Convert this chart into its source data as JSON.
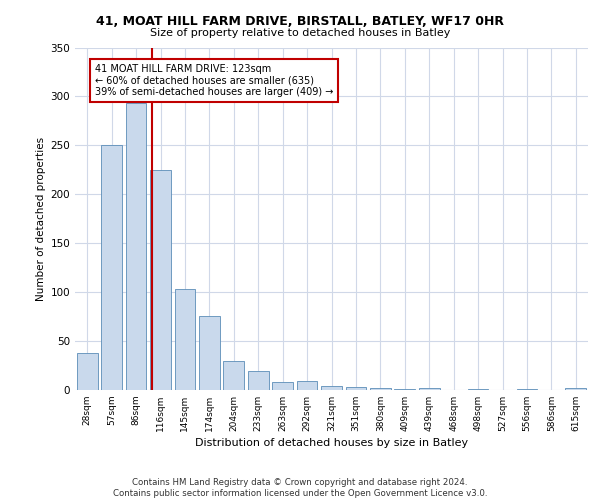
{
  "title_line1": "41, MOAT HILL FARM DRIVE, BIRSTALL, BATLEY, WF17 0HR",
  "title_line2": "Size of property relative to detached houses in Batley",
  "xlabel": "Distribution of detached houses by size in Batley",
  "ylabel": "Number of detached properties",
  "categories": [
    "28sqm",
    "57sqm",
    "86sqm",
    "116sqm",
    "145sqm",
    "174sqm",
    "204sqm",
    "233sqm",
    "263sqm",
    "292sqm",
    "321sqm",
    "351sqm",
    "380sqm",
    "409sqm",
    "439sqm",
    "468sqm",
    "498sqm",
    "527sqm",
    "556sqm",
    "586sqm",
    "615sqm"
  ],
  "values": [
    38,
    250,
    293,
    225,
    103,
    76,
    30,
    19,
    8,
    9,
    4,
    3,
    2,
    1,
    2,
    0,
    1,
    0,
    1,
    0,
    2
  ],
  "bar_color": "#c9d9ec",
  "bar_edge_color": "#5b8db8",
  "vline_x": 2.65,
  "annotation_text": "41 MOAT HILL FARM DRIVE: 123sqm\n← 60% of detached houses are smaller (635)\n39% of semi-detached houses are larger (409) →",
  "vline_color": "#c00000",
  "box_edge_color": "#c00000",
  "ylim": [
    0,
    350
  ],
  "yticks": [
    0,
    50,
    100,
    150,
    200,
    250,
    300,
    350
  ],
  "footer": "Contains HM Land Registry data © Crown copyright and database right 2024.\nContains public sector information licensed under the Open Government Licence v3.0.",
  "bg_color": "#ffffff",
  "grid_color": "#d0d8e8"
}
